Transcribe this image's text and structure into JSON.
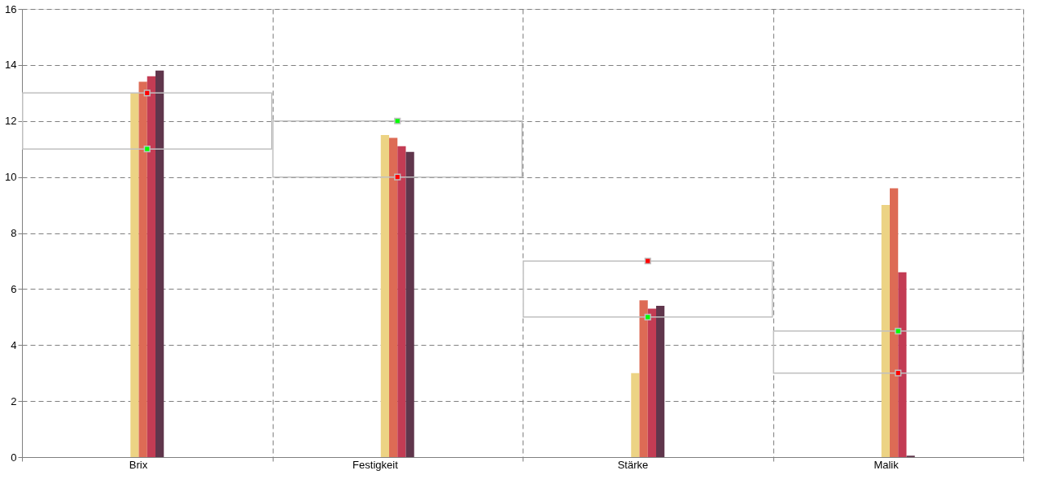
{
  "chart_data": {
    "type": "bar",
    "categories": [
      "Brix",
      "Festigkeit",
      "Stärke",
      "Malik"
    ],
    "series": [
      {
        "color": "#ecd384",
        "values": [
          13.0,
          11.5,
          3.0,
          9.0
        ]
      },
      {
        "color": "#dd6b55",
        "values": [
          13.4,
          11.4,
          5.6,
          9.6
        ]
      },
      {
        "color": "#c33c54",
        "values": [
          13.6,
          11.1,
          5.3,
          6.6
        ]
      },
      {
        "color": "#60364c",
        "values": [
          13.8,
          10.9,
          5.4,
          0.05
        ]
      },
      {
        "type": "bar",
        "color": "#c0c0c0",
        "base": [
          11,
          10,
          5,
          3
        ],
        "values": [
          2,
          2,
          2,
          1.5
        ]
      },
      {
        "type": "scatter",
        "color": "#ff0000",
        "x": [
          "Brix",
          "Festigkeit",
          "Stärke",
          "Malik"
        ],
        "values": [
          13,
          10,
          7,
          3
        ]
      },
      {
        "type": "scatter",
        "color": "#00ff00",
        "x": [
          "Brix",
          "Festigkeit",
          "Stärke",
          "Malik"
        ],
        "values": [
          11,
          12,
          5,
          4.5
        ]
      }
    ],
    "ylim": [
      0,
      16
    ],
    "yticks": [
      0,
      2,
      4,
      6,
      8,
      10,
      12,
      14,
      16
    ],
    "grid": true
  }
}
